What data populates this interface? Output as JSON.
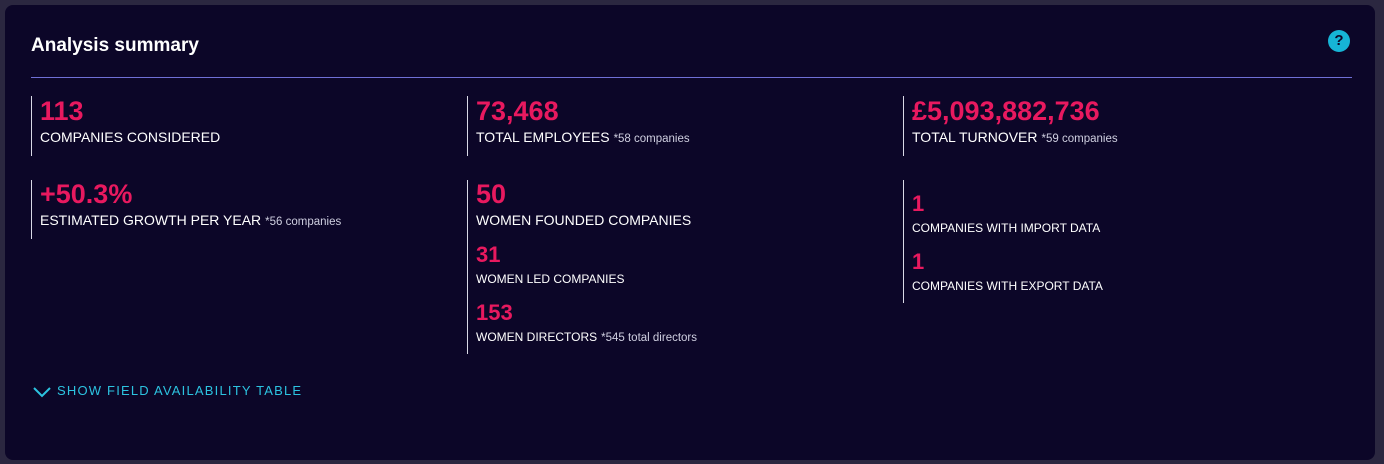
{
  "header": {
    "title": "Analysis summary",
    "help": "?"
  },
  "columns": [
    {
      "groups": [
        {
          "items": [
            {
              "value": "113",
              "label": "COMPANIES CONSIDERED"
            }
          ]
        },
        {
          "items": [
            {
              "value": "+50.3%",
              "label": "ESTIMATED GROWTH PER YEAR",
              "note": "*56 companies"
            }
          ]
        }
      ]
    },
    {
      "groups": [
        {
          "items": [
            {
              "value": "73,468",
              "label": "TOTAL EMPLOYEES",
              "note": "*58 companies"
            }
          ]
        },
        {
          "items": [
            {
              "value": "50",
              "label": "WOMEN FOUNDED COMPANIES"
            },
            {
              "value": "31",
              "label": "WOMEN LED COMPANIES"
            },
            {
              "value": "153",
              "label": "WOMEN DIRECTORS",
              "note": "*545 total directors"
            }
          ]
        }
      ]
    },
    {
      "groups": [
        {
          "items": [
            {
              "value": "£5,093,882,736",
              "label": "TOTAL TURNOVER",
              "note": "*59 companies"
            }
          ]
        },
        {
          "items": [
            {
              "value": "1",
              "label": "COMPANIES WITH IMPORT DATA"
            },
            {
              "value": "1",
              "label": "COMPANIES WITH EXPORT DATA"
            }
          ]
        }
      ]
    }
  ],
  "footer": {
    "toggle": "SHOW FIELD AVAILABILITY TABLE"
  }
}
